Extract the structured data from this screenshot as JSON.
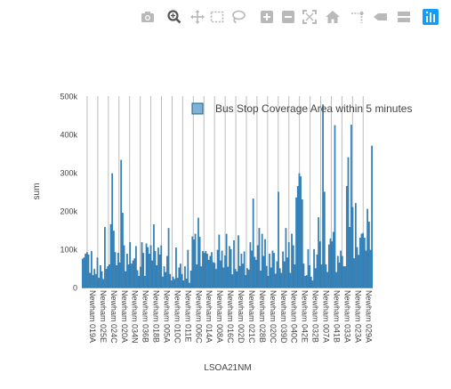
{
  "toolbar": {
    "items": [
      {
        "icon": "camera-icon",
        "title": "Download plot as a png"
      },
      {
        "icon": "zoom-icon",
        "title": "Zoom",
        "active": true
      },
      {
        "icon": "pan-icon",
        "title": "Pan"
      },
      {
        "icon": "box-select-icon",
        "title": "Box Select"
      },
      {
        "icon": "lasso-select-icon",
        "title": "Lasso Select"
      },
      {
        "icon": "zoom-in-icon",
        "title": "Zoom in"
      },
      {
        "icon": "zoom-out-icon",
        "title": "Zoom out"
      },
      {
        "icon": "autoscale-icon",
        "title": "Autoscale"
      },
      {
        "icon": "reset-axes-icon",
        "title": "Reset axes"
      },
      {
        "icon": "spike-lines-icon",
        "title": "Toggle Spike Lines"
      },
      {
        "icon": "hover-closest-icon",
        "title": "Show closest data on hover"
      },
      {
        "icon": "hover-compare-icon",
        "title": "Compare data on hover"
      },
      {
        "icon": "plotly-logo-icon",
        "title": "Produced with Plotly"
      }
    ]
  },
  "colors": {
    "bar": "#3182bd",
    "bar_edge": "#1f5f8b",
    "grid": "#bdbdbd",
    "icon": "#b9b9b9",
    "icon_active": "#555555",
    "logo": "#119dff"
  },
  "chart_data": {
    "type": "bar",
    "xlabel": "LSOA21NM",
    "ylabel": "sum",
    "ylim": [
      0,
      500000
    ],
    "yticks": [
      0,
      100000,
      200000,
      300000,
      400000,
      500000
    ],
    "ytick_labels": [
      "0",
      "100k",
      "200k",
      "300k",
      "400k",
      "500k"
    ],
    "grid": "vertical lines at each labelled category",
    "legend_position": "top-right",
    "series": [
      {
        "name": "Bus Stop Coverage Area within 5 minutes",
        "values": [
          75000,
          78000,
          88000,
          92000,
          86000,
          38000,
          95000,
          32000,
          48000,
          35000,
          78000,
          25000,
          58000,
          42000,
          22000,
          158000,
          48000,
          55000,
          60000,
          165000,
          298000,
          148000,
          92000,
          58000,
          90000,
          65000,
          333000,
          195000,
          110000,
          42000,
          88000,
          60000,
          118000,
          62000,
          70000,
          76000,
          108000,
          45000,
          30000,
          54000,
          118000,
          90000,
          30000,
          115000,
          105000,
          88000,
          110000,
          70000,
          165000,
          95000,
          58000,
          104000,
          86000,
          110000,
          28000,
          55000,
          40000,
          82000,
          155000,
          35000,
          18000,
          28000,
          22000,
          104000,
          25000,
          52000,
          62000,
          35000,
          18000,
          55000,
          23000,
          98000,
          12000,
          44000,
          133000,
          125000,
          140000,
          60000,
          182000,
          132000,
          55000,
          95000,
          90000,
          95000,
          88000,
          72000,
          82000,
          92000,
          66000,
          64000,
          48000,
          98000,
          138000,
          70000,
          96000,
          52000,
          83000,
          140000,
          54000,
          108000,
          100000,
          34000,
          123000,
          48000,
          42000,
          136000,
          56000,
          88000,
          62000,
          94000,
          32000,
          50000,
          46000,
          118000,
          96000,
          232000,
          80000,
          72000,
          110000,
          155000,
          44000,
          140000,
          82000,
          126000,
          56000,
          30000,
          88000,
          52000,
          96000,
          90000,
          36000,
          68000,
          250000,
          50000,
          38000,
          94000,
          68000,
          155000,
          78000,
          118000,
          38000,
          140000,
          110000,
          60000,
          235000,
          265000,
          298000,
          290000,
          230000,
          62000,
          30000,
          32000,
          100000,
          58000,
          28000,
          18000,
          100000,
          50000,
          86000,
          183000,
          120000,
          60000,
          478000,
          250000,
          60000,
          40000,
          112000,
          128000,
          120000,
          145000,
          424000,
          40000,
          82000,
          65000,
          96000,
          82000,
          55000,
          55000,
          265000,
          340000,
          158000,
          425000,
          210000,
          76000,
          220000,
          105000,
          85000,
          130000,
          140000,
          142000,
          130000,
          96000,
          205000,
          172000,
          98000,
          370000
        ]
      }
    ],
    "category_labels": [
      "Newham 019A",
      "Newham 025E",
      "Newham 024C",
      "Newham 020A",
      "Newham 034N",
      "Newham 036B",
      "Newham 018B",
      "Newham 005A",
      "Newham 010C",
      "Newham 011E",
      "Newham 006C",
      "Newham 014A",
      "Newham 008A",
      "Newham 016C",
      "Newham 002D",
      "Newham 021C",
      "Newham 028B",
      "Newham 020C",
      "Newham 039D",
      "Newham 040C",
      "Newham 042E",
      "Newham 032B",
      "Newham 007A",
      "Newham 041B",
      "Newham 033A",
      "Newham 023A",
      "Newham 029A"
    ]
  }
}
